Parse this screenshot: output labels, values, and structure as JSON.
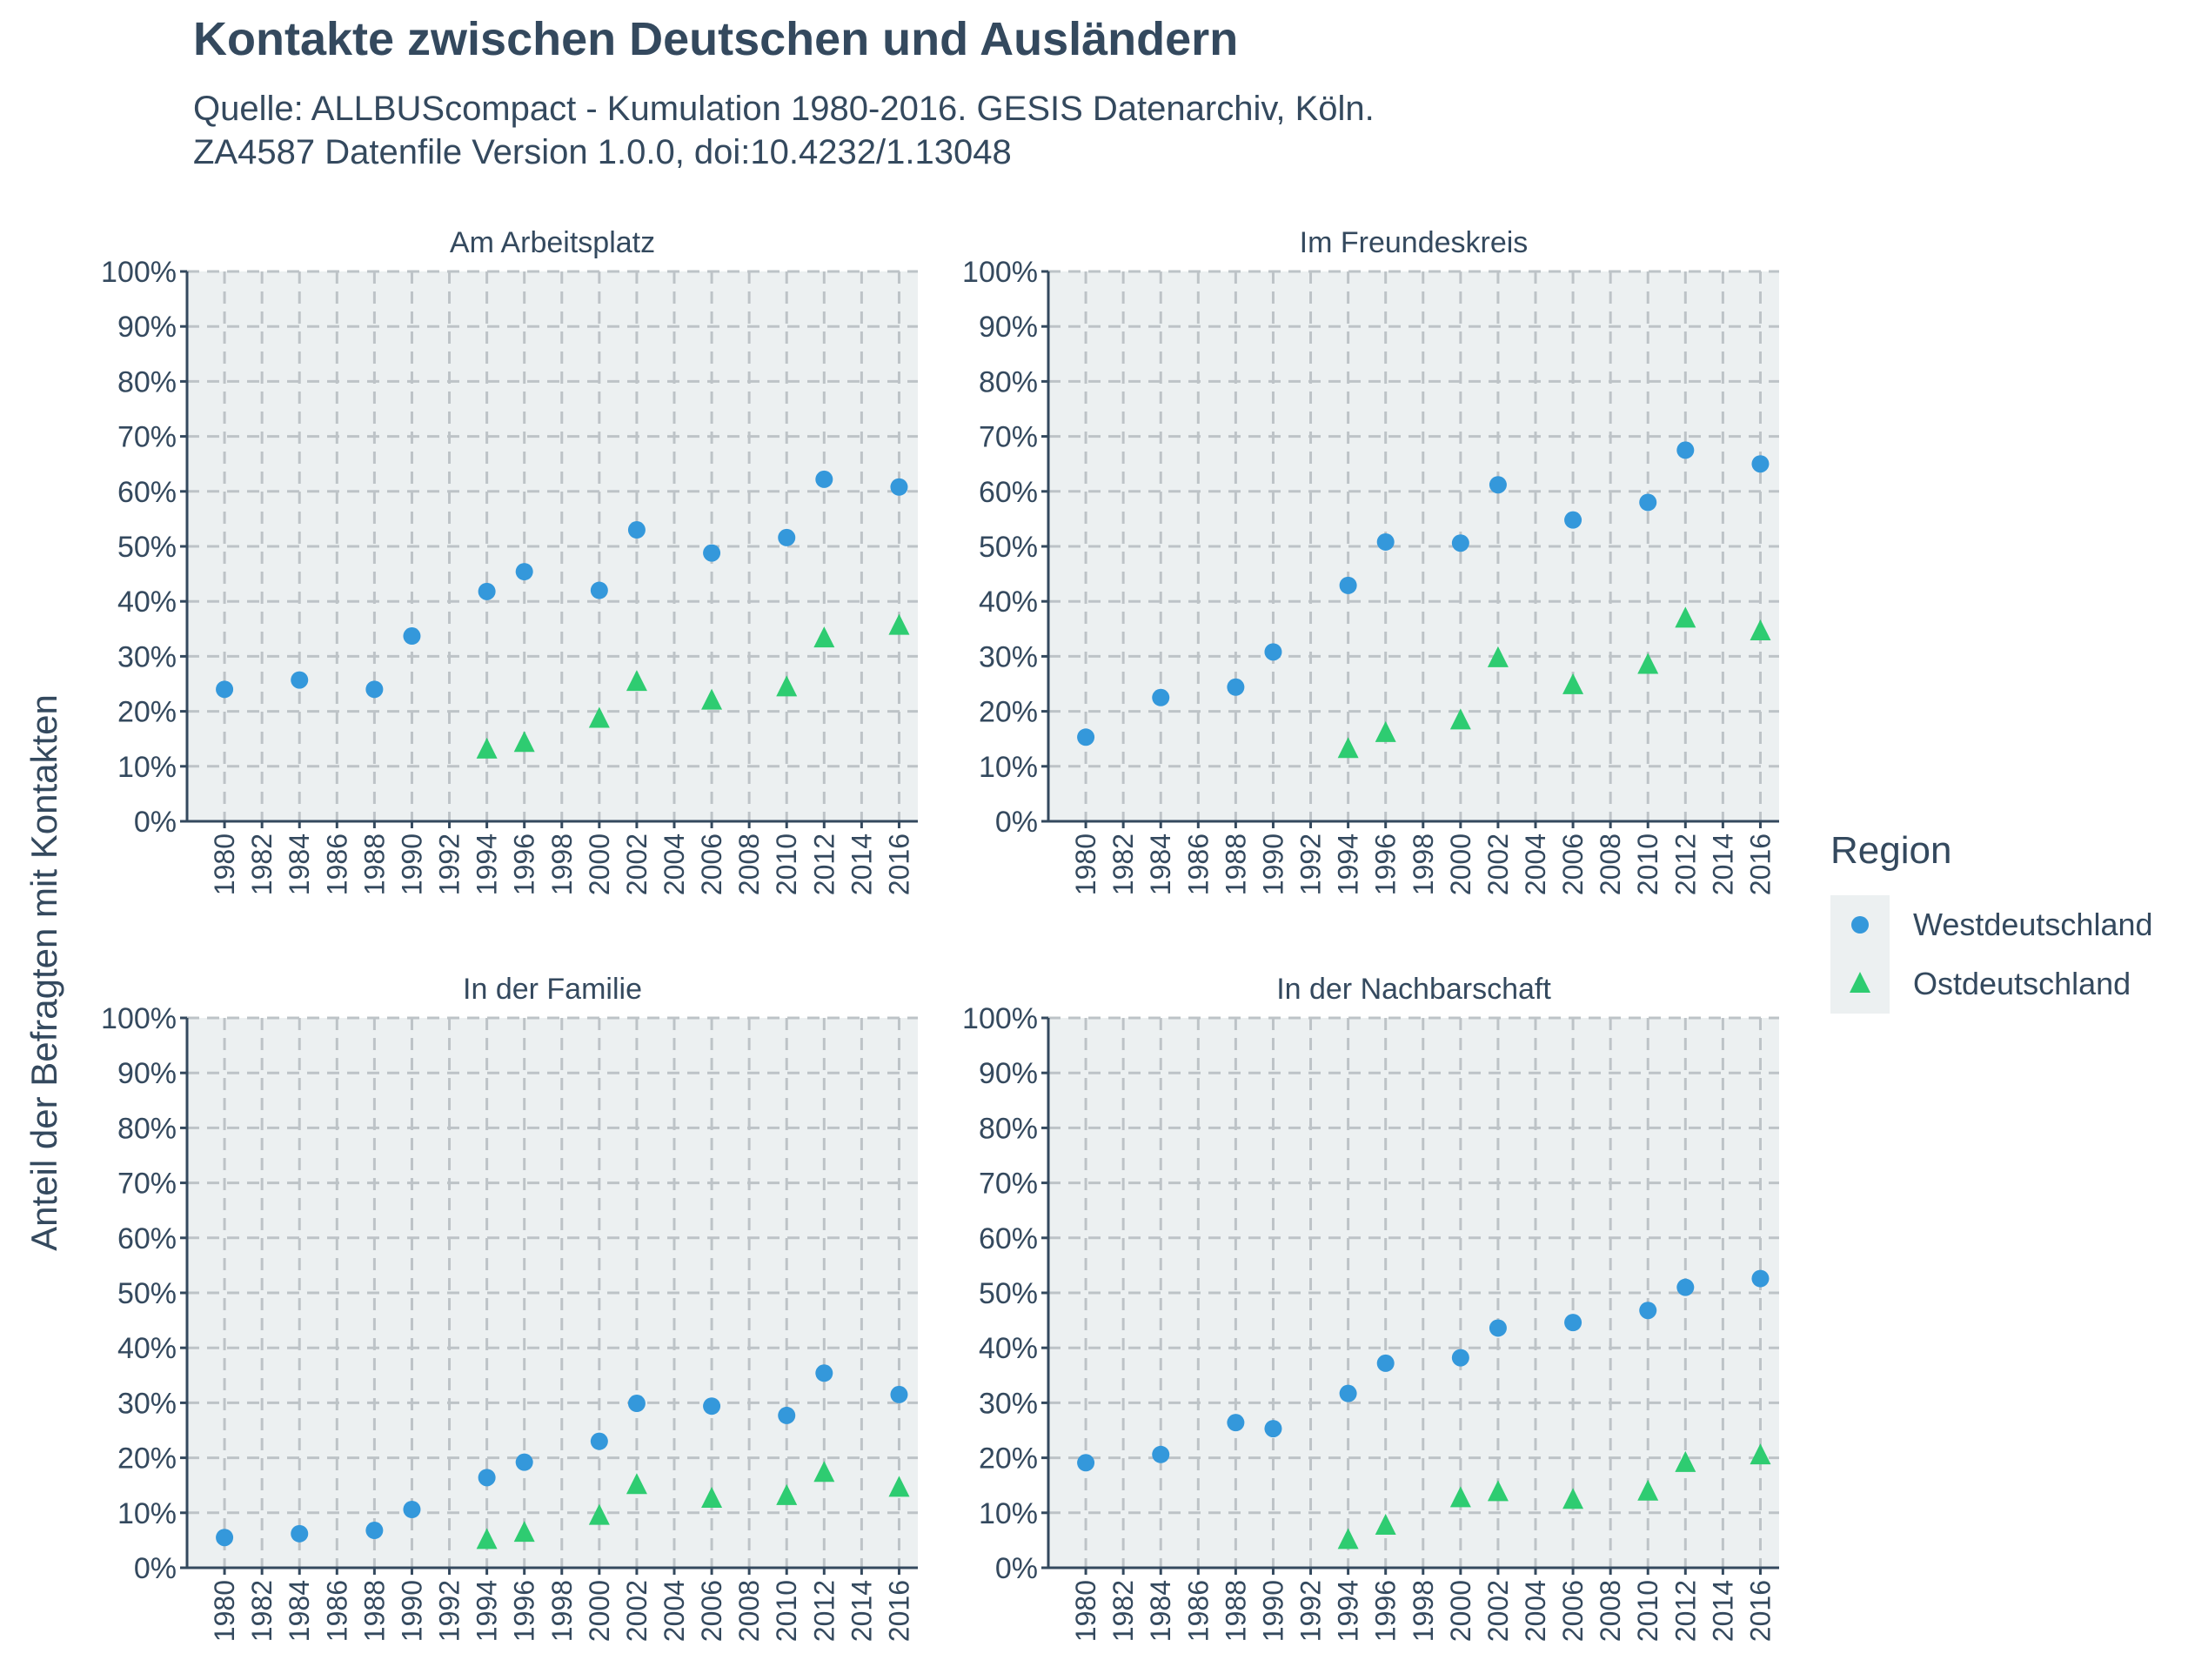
{
  "title": "Kontakte zwischen Deutschen und Ausländern",
  "subtitle_lines": [
    "Quelle: ALLBUScompact - Kumulation 1980-2016. GESIS Datenarchiv, Köln.",
    "ZA4587 Datenfile Version 1.0.0, doi:10.4232/1.13048"
  ],
  "colors": {
    "text": "#34495e",
    "panel_background": "#ecf0f1",
    "grid": "#bdc3c7",
    "axis": "#34495e",
    "west": "#3498db",
    "ost": "#2ecc71"
  },
  "chart_data": {
    "type": "scatter",
    "facet_layout": "2x2",
    "ylabel": "Anteil der Befragten mit Kontakten",
    "xlabel": "",
    "ylim": [
      0,
      100
    ],
    "y_ticks": [
      "0%",
      "10%",
      "20%",
      "30%",
      "40%",
      "50%",
      "60%",
      "70%",
      "80%",
      "90%",
      "100%"
    ],
    "x_range": [
      1978,
      2017
    ],
    "x_ticks": [
      "1980",
      "1982",
      "1984",
      "1986",
      "1988",
      "1990",
      "1992",
      "1994",
      "1996",
      "1998",
      "2000",
      "2002",
      "2004",
      "2006",
      "2008",
      "2010",
      "2012",
      "2014",
      "2016"
    ],
    "grid": "dashed",
    "legend": {
      "title": "Region",
      "position": "right",
      "entries": [
        {
          "label": "Westdeutschland",
          "shape": "circle",
          "color": "#3498db"
        },
        {
          "label": "Ostdeutschland",
          "shape": "triangle",
          "color": "#2ecc71"
        }
      ]
    },
    "panels": [
      {
        "title": "Am Arbeitsplatz",
        "series": [
          {
            "name": "Westdeutschland",
            "x": [
              1980,
              1984,
              1988,
              1990,
              1994,
              1996,
              2000,
              2002,
              2006,
              2010,
              2012,
              2016
            ],
            "y": [
              24,
              25.7,
              24,
              33.7,
              41.8,
              45.4,
              42,
              53,
              48.8,
              51.6,
              62.2,
              60.8
            ]
          },
          {
            "name": "Ostdeutschland",
            "x": [
              1994,
              1996,
              2000,
              2002,
              2006,
              2010,
              2012,
              2016
            ],
            "y": [
              13,
              14.2,
              18.6,
              25.3,
              21.9,
              24.3,
              33.2,
              35.5
            ]
          }
        ]
      },
      {
        "title": "Im Freundeskreis",
        "series": [
          {
            "name": "Westdeutschland",
            "x": [
              1980,
              1984,
              1988,
              1990,
              1994,
              1996,
              2000,
              2002,
              2006,
              2010,
              2012,
              2016
            ],
            "y": [
              15.3,
              22.5,
              24.4,
              30.8,
              42.9,
              50.8,
              50.6,
              61.2,
              54.8,
              58,
              67.5,
              65
            ]
          },
          {
            "name": "Ostdeutschland",
            "x": [
              1994,
              1996,
              2000,
              2002,
              2006,
              2010,
              2012,
              2016
            ],
            "y": [
              13.1,
              16,
              18.3,
              29.6,
              24.7,
              28.4,
              36.8,
              34.5
            ]
          }
        ]
      },
      {
        "title": "In der Familie",
        "series": [
          {
            "name": "Westdeutschland",
            "x": [
              1980,
              1984,
              1988,
              1990,
              1994,
              1996,
              2000,
              2002,
              2006,
              2010,
              2012,
              2016
            ],
            "y": [
              5.5,
              6.2,
              6.8,
              10.6,
              16.4,
              19.2,
              23,
              29.9,
              29.4,
              27.7,
              35.4,
              31.5
            ]
          },
          {
            "name": "Ostdeutschland",
            "x": [
              1994,
              1996,
              2000,
              2002,
              2006,
              2010,
              2012,
              2016
            ],
            "y": [
              5,
              6.3,
              9.4,
              15,
              12.5,
              13,
              17.2,
              14.5
            ]
          }
        ]
      },
      {
        "title": "In der Nachbarschaft",
        "series": [
          {
            "name": "Westdeutschland",
            "x": [
              1980,
              1984,
              1988,
              1990,
              1994,
              1996,
              2000,
              2002,
              2006,
              2010,
              2012,
              2016
            ],
            "y": [
              19.1,
              20.6,
              26.4,
              25.3,
              31.7,
              37.2,
              38.2,
              43.6,
              44.6,
              46.8,
              51,
              52.6
            ]
          },
          {
            "name": "Ostdeutschland",
            "x": [
              1994,
              1996,
              2000,
              2002,
              2006,
              2010,
              2012,
              2016
            ],
            "y": [
              5,
              7.6,
              12.6,
              13.7,
              12.3,
              13.8,
              19,
              20.4
            ]
          }
        ]
      }
    ]
  }
}
